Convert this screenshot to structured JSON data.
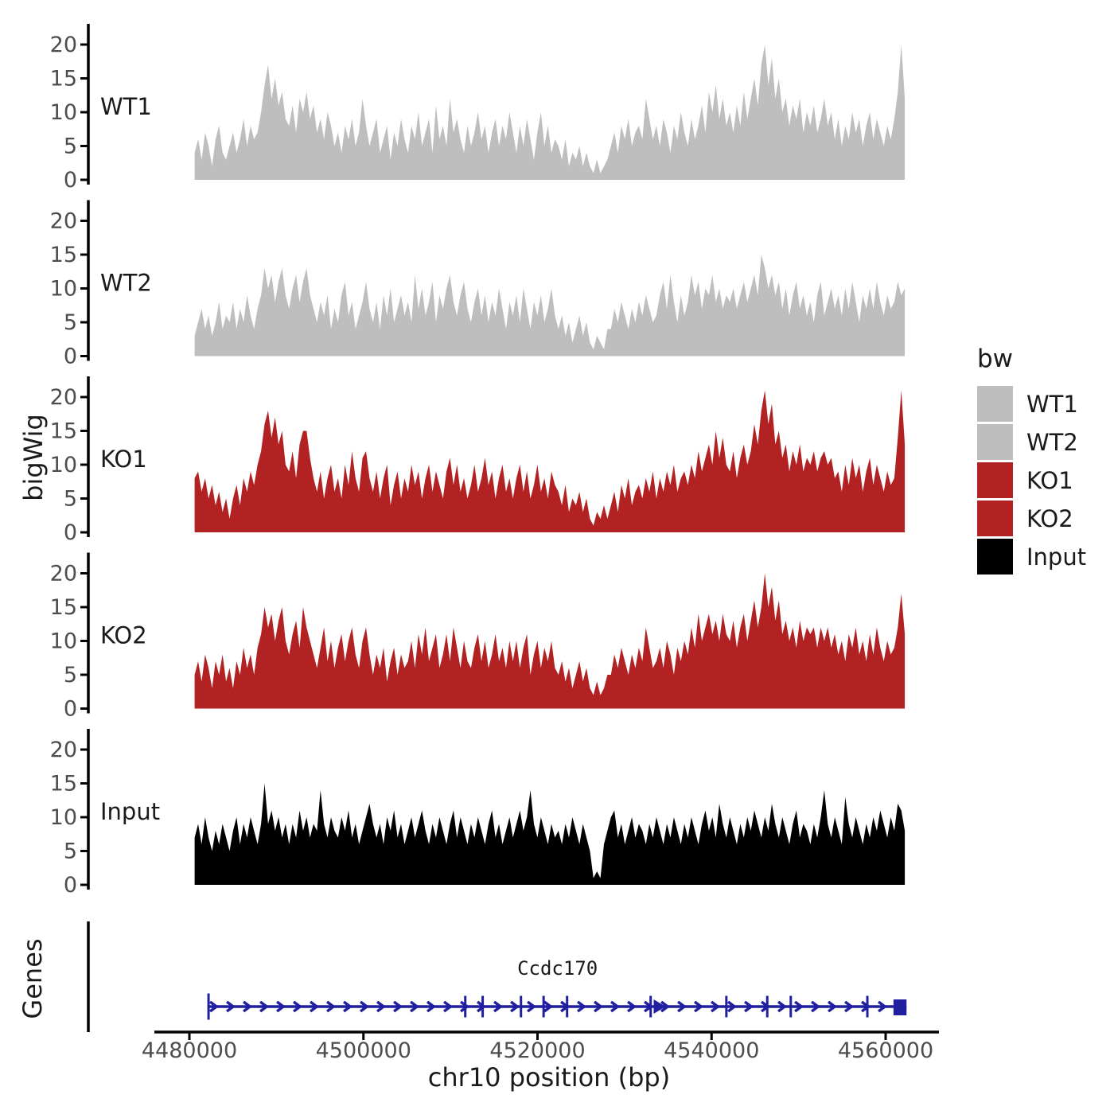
{
  "figure": {
    "y_axis_title": "bigWig",
    "genes_axis_title": "Genes",
    "x_axis": {
      "title": "chr10 position (bp)",
      "ticks": [
        4480000,
        4500000,
        4520000,
        4540000,
        4560000
      ],
      "tick_labels": [
        "4480000",
        "4500000",
        "4520000",
        "4540000",
        "4560000"
      ]
    },
    "legend": {
      "title": "bw",
      "items": [
        {
          "label": "WT1",
          "color": "#BEBEBE"
        },
        {
          "label": "WT2",
          "color": "#BEBEBE"
        },
        {
          "label": "KO1",
          "color": "#B22222"
        },
        {
          "label": "KO2",
          "color": "#B22222"
        },
        {
          "label": "Input",
          "color": "#000000"
        }
      ]
    },
    "colors": {
      "axis_line": "#000000",
      "tick_label": "#4d4d4d",
      "track_label": "#1a1a1a",
      "gene": "#1f1f9f"
    }
  },
  "chart_data": {
    "type": "area",
    "title": "",
    "xlabel": "chr10 position (bp)",
    "ylabel": "bigWig",
    "x_start": 4480600,
    "x_end": 4562200,
    "x_ticks": [
      4480000,
      4500000,
      4520000,
      4540000,
      4560000
    ],
    "y_ticks": [
      0,
      5,
      10,
      15,
      20
    ],
    "ylim": [
      0,
      21.5
    ],
    "grid": false,
    "legend_position": "right",
    "tracks": [
      {
        "label": "WT1",
        "color": "#BEBEBE",
        "values": [
          4,
          6,
          3,
          7,
          5,
          2,
          6,
          8,
          4,
          3,
          5,
          7,
          4,
          6,
          9,
          5,
          8,
          6,
          7,
          10,
          14,
          17,
          12,
          15,
          11,
          13,
          9,
          8,
          11,
          7,
          12,
          10,
          13,
          9,
          11,
          7,
          9,
          6,
          10,
          8,
          5,
          7,
          4,
          8,
          6,
          9,
          5,
          7,
          12,
          8,
          5,
          7,
          9,
          4,
          6,
          8,
          3,
          7,
          5,
          9,
          6,
          4,
          8,
          6,
          10,
          5,
          7,
          9,
          4,
          11,
          6,
          8,
          5,
          12,
          7,
          9,
          6,
          4,
          8,
          5,
          7,
          10,
          6,
          8,
          4,
          7,
          9,
          5,
          8,
          6,
          10,
          7,
          4,
          8,
          5,
          9,
          6,
          3,
          7,
          10,
          5,
          8,
          4,
          6,
          5,
          3,
          6,
          2,
          4,
          3,
          5,
          2,
          4,
          2,
          1,
          3,
          1,
          2,
          3,
          5,
          7,
          4,
          8,
          6,
          9,
          5,
          7,
          8,
          6,
          12,
          9,
          6,
          8,
          5,
          9,
          7,
          4,
          8,
          6,
          10,
          7,
          5,
          9,
          6,
          8,
          11,
          7,
          13,
          10,
          14,
          9,
          12,
          8,
          10,
          7,
          11,
          8,
          13,
          9,
          12,
          15,
          11,
          17,
          20,
          14,
          18,
          12,
          15,
          10,
          12,
          8,
          11,
          9,
          12,
          7,
          10,
          8,
          11,
          7,
          9,
          12,
          8,
          10,
          6,
          9,
          5,
          8,
          6,
          10,
          7,
          9,
          5,
          8,
          10,
          6,
          9,
          7,
          5,
          8,
          6,
          9,
          13,
          20,
          12
        ]
      },
      {
        "label": "WT2",
        "color": "#BEBEBE",
        "values": [
          3,
          5,
          7,
          4,
          6,
          3,
          5,
          8,
          4,
          6,
          5,
          8,
          4,
          7,
          5,
          9,
          6,
          4,
          7,
          9,
          13,
          10,
          12,
          8,
          11,
          13,
          9,
          7,
          10,
          12,
          8,
          11,
          13,
          9,
          7,
          5,
          8,
          6,
          9,
          4,
          7,
          5,
          9,
          11,
          6,
          8,
          4,
          6,
          8,
          11,
          7,
          5,
          8,
          4,
          9,
          6,
          10,
          5,
          7,
          9,
          6,
          8,
          5,
          12,
          7,
          10,
          6,
          8,
          11,
          5,
          9,
          7,
          10,
          12,
          8,
          6,
          9,
          11,
          7,
          5,
          8,
          10,
          6,
          9,
          5,
          8,
          6,
          10,
          7,
          4,
          8,
          6,
          9,
          5,
          10,
          7,
          4,
          8,
          6,
          9,
          5,
          7,
          10,
          6,
          4,
          6,
          3,
          5,
          2,
          4,
          6,
          3,
          5,
          2,
          1,
          3,
          2,
          1,
          4,
          4,
          7,
          5,
          8,
          6,
          4,
          7,
          5,
          8,
          6,
          9,
          7,
          5,
          6,
          9,
          11,
          7,
          12,
          8,
          5,
          9,
          6,
          8,
          12,
          9,
          11,
          7,
          10,
          9,
          12,
          8,
          10,
          7,
          9,
          8,
          10,
          7,
          9,
          11,
          8,
          10,
          12,
          9,
          15,
          13,
          10,
          12,
          9,
          11,
          7,
          10,
          6,
          9,
          11,
          7,
          9,
          6,
          8,
          5,
          9,
          11,
          6,
          8,
          10,
          7,
          9,
          6,
          10,
          7,
          11,
          8,
          5,
          9,
          7,
          10,
          7,
          11,
          8,
          6,
          9,
          7,
          8,
          11,
          9,
          10
        ]
      },
      {
        "label": "KO1",
        "color": "#B22222",
        "values": [
          8,
          9,
          6,
          8,
          5,
          7,
          4,
          6,
          3,
          5,
          2,
          5,
          7,
          4,
          8,
          6,
          9,
          7,
          10,
          12,
          16,
          18,
          14,
          17,
          13,
          15,
          10,
          9,
          12,
          8,
          13,
          15,
          15,
          11,
          8,
          6,
          9,
          5,
          8,
          10,
          6,
          8,
          5,
          10,
          7,
          12,
          8,
          6,
          11,
          12,
          8,
          6,
          9,
          5,
          8,
          10,
          4,
          7,
          9,
          5,
          8,
          6,
          10,
          7,
          9,
          5,
          8,
          10,
          6,
          9,
          7,
          5,
          9,
          11,
          7,
          10,
          6,
          8,
          5,
          7,
          10,
          6,
          8,
          11,
          7,
          9,
          5,
          8,
          10,
          6,
          8,
          5,
          8,
          10,
          6,
          9,
          5,
          7,
          10,
          6,
          8,
          5,
          9,
          7,
          6,
          4,
          7,
          3,
          5,
          4,
          6,
          3,
          5,
          2,
          1,
          3,
          2,
          4,
          2,
          4,
          6,
          3,
          7,
          5,
          8,
          4,
          6,
          7,
          5,
          8,
          6,
          9,
          5,
          8,
          6,
          9,
          7,
          10,
          6,
          8,
          9,
          7,
          10,
          8,
          12,
          9,
          11,
          13,
          10,
          15,
          11,
          14,
          10,
          9,
          12,
          8,
          11,
          13,
          10,
          12,
          16,
          13,
          18,
          21,
          16,
          19,
          13,
          15,
          11,
          13,
          9,
          12,
          10,
          13,
          9,
          11,
          10,
          12,
          9,
          11,
          12,
          10,
          11,
          8,
          9,
          6,
          10,
          7,
          11,
          8,
          10,
          6,
          9,
          11,
          7,
          10,
          8,
          6,
          9,
          7,
          8,
          14,
          21,
          13
        ]
      },
      {
        "label": "KO2",
        "color": "#B22222",
        "values": [
          5,
          7,
          4,
          8,
          6,
          3,
          7,
          5,
          8,
          4,
          6,
          3,
          7,
          5,
          9,
          6,
          8,
          5,
          9,
          11,
          15,
          12,
          14,
          10,
          13,
          15,
          10,
          8,
          11,
          13,
          9,
          15,
          12,
          10,
          8,
          6,
          9,
          12,
          7,
          10,
          6,
          9,
          11,
          7,
          10,
          12,
          8,
          6,
          10,
          12,
          8,
          5,
          8,
          6,
          9,
          4,
          7,
          9,
          5,
          8,
          6,
          7,
          10,
          6,
          11,
          8,
          12,
          7,
          9,
          11,
          6,
          8,
          11,
          7,
          12,
          9,
          6,
          10,
          7,
          6,
          9,
          11,
          7,
          10,
          6,
          8,
          11,
          7,
          9,
          6,
          10,
          7,
          10,
          6,
          9,
          11,
          5,
          8,
          10,
          6,
          9,
          7,
          10,
          6,
          5,
          7,
          4,
          6,
          3,
          5,
          7,
          4,
          6,
          3,
          2,
          4,
          2,
          3,
          5,
          5,
          8,
          6,
          9,
          7,
          5,
          8,
          6,
          9,
          7,
          12,
          9,
          6,
          7,
          9,
          6,
          10,
          8,
          5,
          9,
          7,
          10,
          8,
          12,
          9,
          14,
          10,
          12,
          14,
          11,
          13,
          10,
          14,
          11,
          10,
          13,
          9,
          12,
          14,
          10,
          13,
          16,
          12,
          15,
          20,
          15,
          18,
          13,
          16,
          11,
          13,
          10,
          12,
          9,
          13,
          10,
          12,
          11,
          12,
          9,
          12,
          10,
          12,
          9,
          11,
          8,
          10,
          7,
          11,
          9,
          12,
          8,
          10,
          7,
          11,
          8,
          12,
          9,
          7,
          10,
          8,
          9,
          12,
          17,
          11
        ]
      },
      {
        "label": "Input",
        "color": "#000000",
        "values": [
          7,
          9,
          6,
          10,
          7,
          5,
          8,
          6,
          9,
          7,
          5,
          8,
          10,
          6,
          9,
          7,
          10,
          8,
          6,
          9,
          15,
          9,
          11,
          8,
          10,
          7,
          9,
          6,
          9,
          7,
          11,
          8,
          10,
          7,
          9,
          8,
          14,
          9,
          7,
          10,
          8,
          7,
          10,
          8,
          11,
          7,
          9,
          6,
          8,
          10,
          12,
          9,
          7,
          9,
          6,
          10,
          8,
          11,
          7,
          9,
          6,
          8,
          10,
          7,
          9,
          11,
          8,
          6,
          9,
          7,
          10,
          8,
          6,
          9,
          11,
          7,
          10,
          8,
          6,
          9,
          7,
          10,
          8,
          6,
          9,
          11,
          7,
          9,
          6,
          8,
          10,
          7,
          9,
          11,
          8,
          10,
          14,
          9,
          7,
          10,
          8,
          6,
          9,
          7,
          8,
          6,
          9,
          7,
          10,
          8,
          6,
          9,
          7,
          5,
          1,
          2,
          1,
          6,
          8,
          10,
          11,
          7,
          9,
          6,
          8,
          10,
          7,
          9,
          8,
          6,
          9,
          7,
          10,
          8,
          6,
          9,
          7,
          10,
          8,
          6,
          9,
          7,
          10,
          8,
          6,
          9,
          11,
          8,
          10,
          7,
          12,
          9,
          7,
          10,
          8,
          6,
          9,
          7,
          10,
          8,
          11,
          9,
          7,
          10,
          8,
          12,
          9,
          7,
          10,
          8,
          6,
          9,
          11,
          7,
          9,
          8,
          6,
          9,
          7,
          10,
          14,
          9,
          7,
          10,
          8,
          6,
          13,
          9,
          7,
          10,
          8,
          6,
          9,
          7,
          10,
          8,
          11,
          9,
          7,
          10,
          8,
          12,
          11,
          8
        ]
      }
    ],
    "gene_track": {
      "panel_label": "Genes",
      "gene": {
        "name": "Ccdc170",
        "chrom": "chr10",
        "start": 4482200,
        "end": 4562400,
        "strand": "+",
        "exon_ticks": [
          4482200,
          4511700,
          4513700,
          4518100,
          4520700,
          4523400,
          4533000,
          4541700,
          4546400,
          4549100,
          4557900
        ],
        "big_arrow": 4533900,
        "final_exon": [
          4560900,
          4562400
        ],
        "color": "#1f1f9f"
      }
    }
  }
}
